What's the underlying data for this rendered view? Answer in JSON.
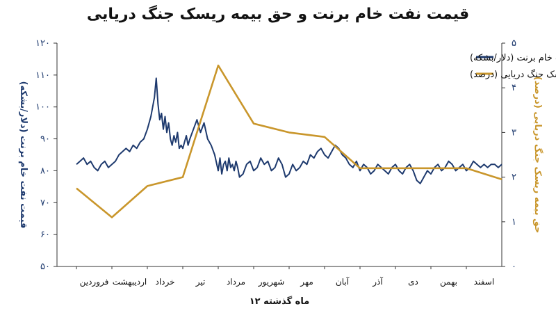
{
  "chart_data": {
    "type": "line",
    "title": "قیمت نفت خام برنت و حق بیمه ریسک جنگ دریایی",
    "xlabel": "۱۲ ماه گذشته",
    "ylabel_left": "قیمت نفت خام برنت (دلار/بشکه)",
    "ylabel_right": "حق بیمه ریسک جنگ دریایی (درصد)",
    "ylim_left": [
      50,
      120
    ],
    "ylim_right": [
      0,
      5
    ],
    "yticks_left": [
      "۵۰",
      "۶۰",
      "۷۰",
      "۸۰",
      "۹۰",
      "۱۰۰",
      "۱۱۰",
      "۱۲۰"
    ],
    "yticks_right": [
      "۰",
      "۱",
      "۲",
      "۳",
      "۴",
      "۵"
    ],
    "categories": [
      "فروردین",
      "اردیبهشت",
      "خرداد",
      "تیر",
      "مرداد",
      "شهریور",
      "مهر",
      "آبان",
      "آذر",
      "دی",
      "بهمن",
      "اسفند"
    ],
    "legend_position": "top-right",
    "series": [
      {
        "name": "قیمت نفت خام برنت (دلار/بشکه)",
        "axis": "left",
        "color": "#1e3a6e",
        "x": [
          0,
          0.1,
          0.2,
          0.3,
          0.4,
          0.5,
          0.6,
          0.7,
          0.8,
          0.9,
          1.0,
          1.1,
          1.2,
          1.3,
          1.4,
          1.5,
          1.6,
          1.7,
          1.8,
          1.9,
          2.0,
          2.1,
          2.2,
          2.25,
          2.3,
          2.35,
          2.4,
          2.45,
          2.5,
          2.55,
          2.6,
          2.65,
          2.7,
          2.75,
          2.8,
          2.85,
          2.9,
          2.95,
          3.0,
          3.05,
          3.1,
          3.15,
          3.2,
          3.3,
          3.4,
          3.5,
          3.6,
          3.7,
          3.8,
          3.9,
          4.0,
          4.05,
          4.1,
          4.15,
          4.2,
          4.25,
          4.3,
          4.35,
          4.4,
          4.45,
          4.5,
          4.55,
          4.6,
          4.7,
          4.8,
          4.9,
          5.0,
          5.1,
          5.2,
          5.3,
          5.4,
          5.5,
          5.6,
          5.7,
          5.8,
          5.9,
          6.0,
          6.1,
          6.2,
          6.3,
          6.4,
          6.5,
          6.6,
          6.7,
          6.8,
          6.9,
          7.0,
          7.1,
          7.2,
          7.3,
          7.4,
          7.5,
          7.6,
          7.7,
          7.8,
          7.9,
          8.0,
          8.1,
          8.2,
          8.3,
          8.4,
          8.5,
          8.6,
          8.7,
          8.8,
          8.9,
          9.0,
          9.1,
          9.2,
          9.3,
          9.4,
          9.5,
          9.6,
          9.7,
          9.8,
          9.9,
          10.0,
          10.1,
          10.2,
          10.3,
          10.4,
          10.5,
          10.6,
          10.7,
          10.8,
          10.9,
          11.0,
          11.1,
          11.2,
          11.3,
          11.4,
          11.5,
          11.6,
          11.7,
          11.8,
          11.9,
          12.0
        ],
        "values": [
          82,
          83,
          84,
          82,
          83,
          81,
          80,
          82,
          83,
          81,
          82,
          83,
          85,
          86,
          87,
          86,
          88,
          87,
          89,
          90,
          93,
          97,
          103,
          109,
          101,
          96,
          98,
          93,
          97,
          92,
          95,
          90,
          88,
          91,
          89,
          92,
          87,
          88,
          87,
          89,
          91,
          88,
          90,
          93,
          96,
          92,
          95,
          90,
          88,
          85,
          80,
          84,
          79,
          82,
          83,
          80,
          84,
          81,
          82,
          80,
          83,
          81,
          78,
          79,
          82,
          83,
          80,
          81,
          84,
          82,
          83,
          80,
          81,
          84,
          82,
          78,
          79,
          82,
          80,
          81,
          83,
          82,
          85,
          84,
          86,
          87,
          85,
          84,
          86,
          88,
          87,
          85,
          84,
          82,
          81,
          83,
          80,
          82,
          81,
          79,
          80,
          82,
          81,
          80,
          79,
          81,
          82,
          80,
          79,
          81,
          82,
          80,
          77,
          76,
          78,
          80,
          79,
          81,
          82,
          80,
          81,
          83,
          82,
          80,
          81,
          82,
          80,
          81,
          83,
          82,
          81,
          82,
          81,
          82,
          82,
          81,
          82
        ],
        "values_note": ""
      },
      {
        "name": "حق بیمه ریسک جنگ دریایی (درصد)",
        "axis": "right",
        "color": "#c9962b",
        "x": [
          0,
          1.0,
          2.0,
          3.0,
          4.0,
          5.0,
          6.0,
          7.0,
          8.0,
          9.0,
          10.0,
          11.0,
          12.0
        ],
        "values": [
          1.75,
          1.1,
          1.8,
          2.0,
          4.5,
          3.2,
          3.0,
          2.9,
          2.2,
          2.2,
          2.2,
          2.2,
          1.95
        ]
      }
    ]
  }
}
